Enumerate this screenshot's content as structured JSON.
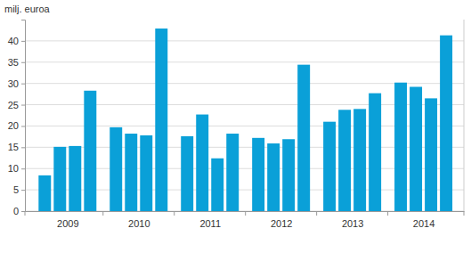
{
  "chart_data": {
    "type": "bar",
    "ylabel": "milj. euroa",
    "categories": [
      "2009",
      null,
      null,
      null,
      "2010",
      null,
      null,
      null,
      "2011",
      null,
      null,
      null,
      "2012",
      null,
      null,
      null,
      "2013",
      null,
      null,
      null,
      "2014",
      null,
      null,
      null
    ],
    "values": [
      8.4,
      15.1,
      15.3,
      28.3,
      19.7,
      18.2,
      17.8,
      42.9,
      17.6,
      22.7,
      12.4,
      18.2,
      17.2,
      15.9,
      16.9,
      34.4,
      21.0,
      23.8,
      24.0,
      27.7,
      30.2,
      29.2,
      26.5,
      41.3
    ],
    "color": "#0aa0d8",
    "ylim": [
      0,
      45
    ],
    "yticks": [
      0,
      5,
      10,
      15,
      20,
      25,
      30,
      35,
      40
    ],
    "grid": true
  }
}
